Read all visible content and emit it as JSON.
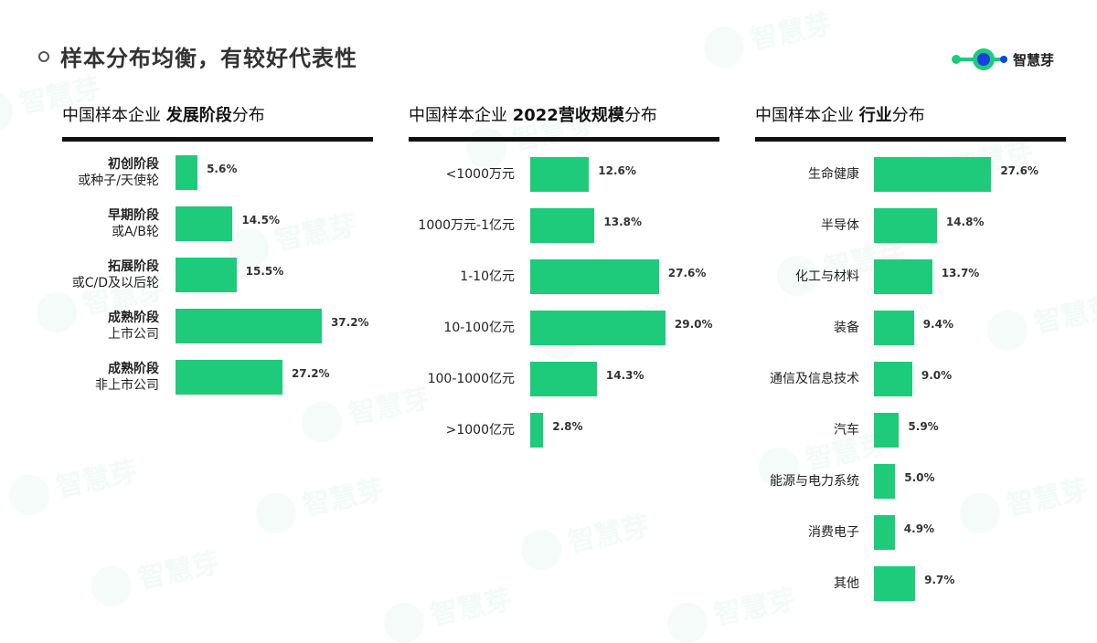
{
  "page": {
    "title": "样本分布均衡，有较好代表性",
    "logo_text": "智慧芽",
    "watermark_text": "智慧芽"
  },
  "colors": {
    "bar": "#1ecb7b",
    "rule": "#111111",
    "logo_green": "#1ecb7b",
    "logo_blue": "#1a3fe0"
  },
  "chart_data": [
    {
      "type": "bar",
      "orientation": "horizontal",
      "title_prefix": "中国样本企业",
      "title_bold": "发展阶段",
      "title_suffix": "分布",
      "categories": [
        {
          "line1": "初创阶段",
          "line2": "或种子/天使轮"
        },
        {
          "line1": "早期阶段",
          "line2": "或A/B轮"
        },
        {
          "line1": "拓展阶段",
          "line2": "或C/D及以后轮"
        },
        {
          "line1": "成熟阶段",
          "line2": "上市公司"
        },
        {
          "line1": "成熟阶段",
          "line2": "非上市公司"
        }
      ],
      "values": [
        5.6,
        14.5,
        15.5,
        37.2,
        27.2
      ],
      "value_labels": [
        "5.6%",
        "14.5%",
        "15.5%",
        "37.2%",
        "27.2%"
      ],
      "unit": "%"
    },
    {
      "type": "bar",
      "orientation": "horizontal",
      "title_prefix": "中国样本企业",
      "title_bold": "2022营收规模",
      "title_suffix": "分布",
      "categories": [
        {
          "line1": "<1000万元",
          "line2": ""
        },
        {
          "line1": "1000万元-1亿元",
          "line2": ""
        },
        {
          "line1": "1-10亿元",
          "line2": ""
        },
        {
          "line1": "10-100亿元",
          "line2": ""
        },
        {
          "line1": "100-1000亿元",
          "line2": ""
        },
        {
          "line1": ">1000亿元",
          "line2": ""
        }
      ],
      "values": [
        12.6,
        13.8,
        27.6,
        29.0,
        14.3,
        2.8
      ],
      "value_labels": [
        "12.6%",
        "13.8%",
        "27.6%",
        "29.0%",
        "14.3%",
        "2.8%"
      ],
      "unit": "%"
    },
    {
      "type": "bar",
      "orientation": "horizontal",
      "title_prefix": "中国样本企业",
      "title_bold": "行业",
      "title_suffix": "分布",
      "categories": [
        {
          "line1": "生命健康",
          "line2": ""
        },
        {
          "line1": "半导体",
          "line2": ""
        },
        {
          "line1": "化工与材料",
          "line2": ""
        },
        {
          "line1": "装备",
          "line2": ""
        },
        {
          "line1": "通信及信息技术",
          "line2": ""
        },
        {
          "line1": "汽车",
          "line2": ""
        },
        {
          "line1": "能源与电力系统",
          "line2": ""
        },
        {
          "line1": "消费电子",
          "line2": ""
        },
        {
          "line1": "其他",
          "line2": ""
        }
      ],
      "values": [
        27.6,
        14.8,
        13.7,
        9.4,
        9.0,
        5.9,
        5.0,
        4.9,
        9.7
      ],
      "value_labels": [
        "27.6%",
        "14.8%",
        "13.7%",
        "9.4%",
        "9.0%",
        "5.9%",
        "5.0%",
        "4.9%",
        "9.7%"
      ],
      "unit": "%"
    }
  ]
}
